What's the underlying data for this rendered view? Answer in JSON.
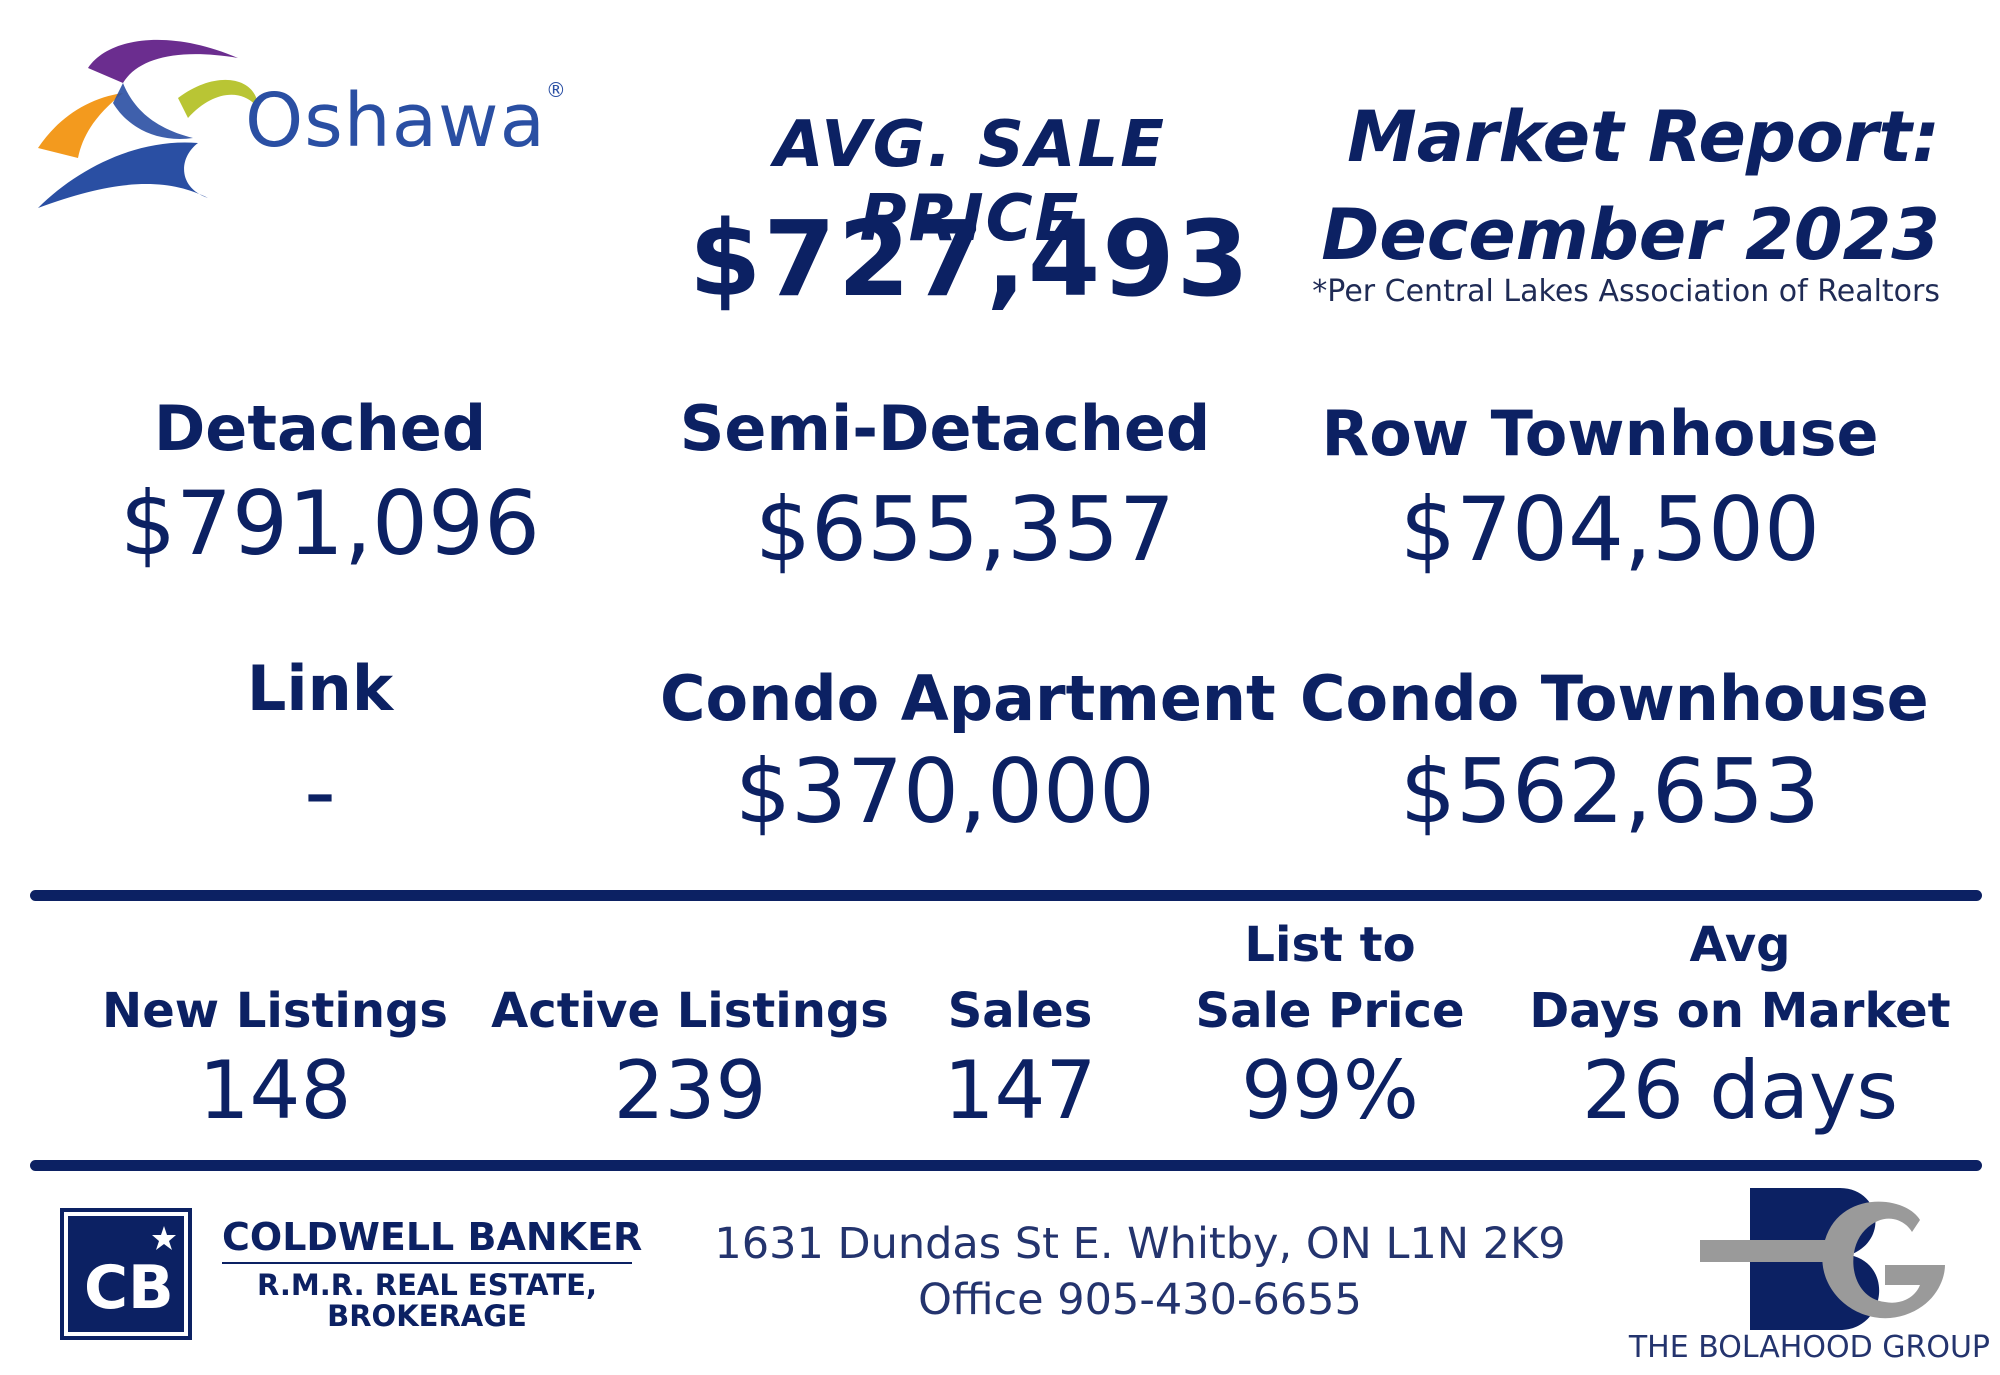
{
  "logo": {
    "text": "Oshawa",
    "registered": "®"
  },
  "header": {
    "avg_label": "AVG. SALE PRICE",
    "avg_value": "$727,493",
    "report_line1": "Market Report:",
    "report_line2": "December 2023",
    "source": "*Per Central Lakes Association of Realtors"
  },
  "categories": [
    {
      "label": "Detached",
      "value": "$791,096"
    },
    {
      "label": "Semi-Detached",
      "value": "$655,357"
    },
    {
      "label": "Row Townhouse",
      "value": "$704,500"
    },
    {
      "label": "Link",
      "value": "-"
    },
    {
      "label": "Condo Apartment",
      "value": "$370,000"
    },
    {
      "label": "Condo Townhouse",
      "value": "$562,653"
    }
  ],
  "stats": [
    {
      "label_line1": "",
      "label_line2": "New Listings",
      "value": "148"
    },
    {
      "label_line1": "",
      "label_line2": "Active Listings",
      "value": "239"
    },
    {
      "label_line1": "",
      "label_line2": "Sales",
      "value": "147"
    },
    {
      "label_line1": "List to",
      "label_line2": "Sale Price",
      "value": "99%"
    },
    {
      "label_line1": "Avg",
      "label_line2": "Days on Market",
      "value": "26 days"
    }
  ],
  "footer": {
    "brokerage_line1": "COLDWELL BANKER",
    "brokerage_line2": "R.M.R. REAL ESTATE,",
    "brokerage_line3": "BROKERAGE",
    "address": "1631 Dundas St E. Whitby, ON L1N 2K9",
    "office": "Office 905-430-6655",
    "group_name": "THE BOLAHOOD GROUP"
  },
  "colors": {
    "navy": "#0c2163",
    "logo_purple": "#6b2d8f",
    "logo_orange": "#f39a1e",
    "logo_green": "#b9c534",
    "logo_blue": "#2a4fa3",
    "bg_gray": "#9a9a9a"
  }
}
